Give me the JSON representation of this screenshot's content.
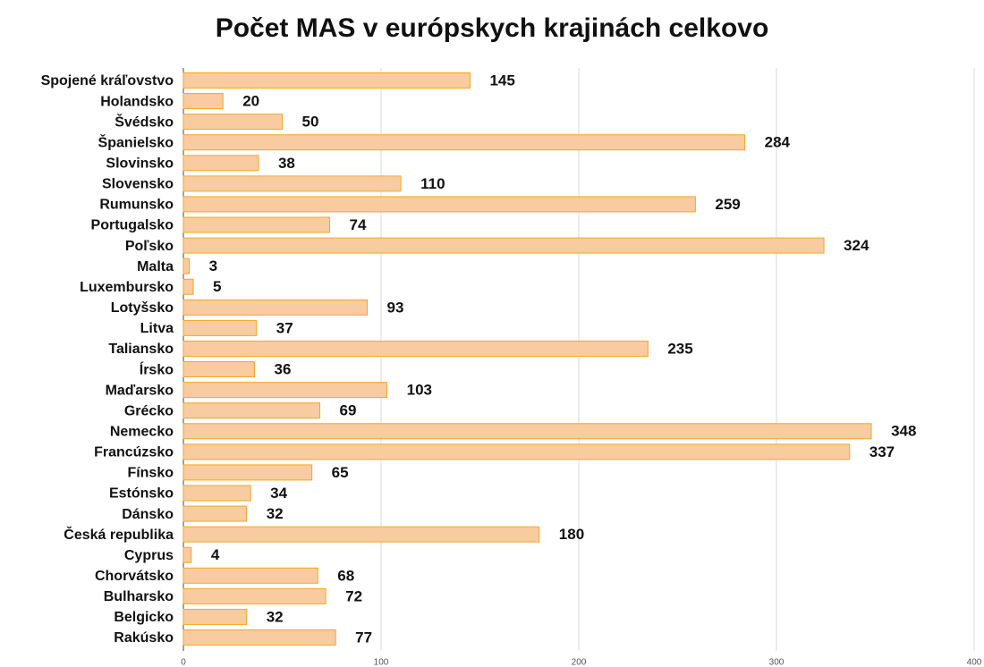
{
  "chart_data": {
    "type": "hbar",
    "title": "Počet MAS v európskych krajinách celkovo",
    "categories": [
      "Spojené kráľovstvo",
      "Holandsko",
      "Švédsko",
      "Španielsko",
      "Slovinsko",
      "Slovensko",
      "Rumunsko",
      "Portugalsko",
      "Poľsko",
      "Malta",
      "Luxembursko",
      "Lotyšsko",
      "Litva",
      "Taliansko",
      "Írsko",
      "Maďarsko",
      "Grécko",
      "Nemecko",
      "Francúzsko",
      "Fínsko",
      "Estónsko",
      "Dánsko",
      "Česká republika",
      "Cyprus",
      "Chorvátsko",
      "Bulharsko",
      "Belgicko",
      "Rakúsko"
    ],
    "values": [
      145,
      20,
      50,
      284,
      38,
      110,
      259,
      74,
      324,
      3,
      5,
      93,
      37,
      235,
      36,
      103,
      69,
      348,
      337,
      65,
      34,
      32,
      180,
      4,
      68,
      72,
      32,
      77
    ],
    "color": "#f8cba0",
    "edge_color": "#f5a623",
    "xlim": [
      0,
      400
    ],
    "xticks": [
      0,
      100,
      200,
      300,
      400
    ],
    "grid": true
  }
}
